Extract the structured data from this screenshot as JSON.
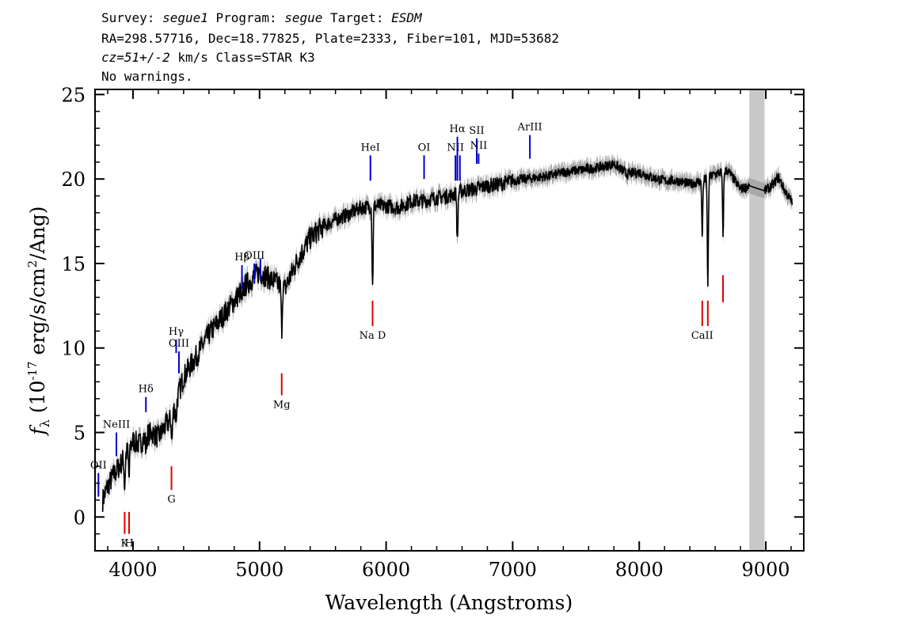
{
  "header": {
    "survey_label": "Survey:",
    "survey": "segue1",
    "program_label": "Program:",
    "program": "segue",
    "target_label": "Target:",
    "target": "ESDM",
    "line2": "RA=298.57716, Dec=18.77825, Plate=2333, Fiber=101, MJD=53682",
    "cz_label": "cz=51+/-2",
    "cz_units": "km/s Class=STAR K3",
    "warnings": "No warnings."
  },
  "chart_data": {
    "type": "line",
    "xlabel": "Wavelength (Angstroms)",
    "ylabel": "f_λ (10^-17 erg/s/cm^2/Ang)",
    "xlim": [
      3700,
      9300
    ],
    "ylim": [
      -2,
      25.3
    ],
    "xticks": [
      4000,
      5000,
      6000,
      7000,
      8000,
      9000
    ],
    "yticks": [
      0,
      5,
      10,
      15,
      20,
      25
    ],
    "grey_band": [
      8870,
      8990
    ],
    "series": [
      {
        "color": "#000000",
        "x": [
          3760,
          3800,
          3850,
          3900,
          3950,
          4000,
          4050,
          4100,
          4150,
          4200,
          4250,
          4300,
          4350,
          4400,
          4500,
          4600,
          4700,
          4800,
          4900,
          5000,
          5100,
          5200,
          5300,
          5400,
          5500,
          5600,
          5700,
          5800,
          5900,
          6000,
          6100,
          6200,
          6300,
          6400,
          6500,
          6600,
          6700,
          6800,
          6900,
          7000,
          7100,
          7200,
          7300,
          7400,
          7500,
          7600,
          7700,
          7800,
          7900,
          8000,
          8100,
          8200,
          8300,
          8400,
          8500,
          8600,
          8700,
          8800,
          8870,
          8990,
          9050,
          9100,
          9150,
          9200
        ],
        "y": [
          1.0,
          1.8,
          2.5,
          3.1,
          3.8,
          4.5,
          4.3,
          4.8,
          5.0,
          4.7,
          5.3,
          5.8,
          7.0,
          8.3,
          9.5,
          10.8,
          11.8,
          12.8,
          13.8,
          14.5,
          14.0,
          13.5,
          15.2,
          16.5,
          17.2,
          17.6,
          17.9,
          18.3,
          18.4,
          18.4,
          18.3,
          18.7,
          18.7,
          18.9,
          19.0,
          19.3,
          19.4,
          19.6,
          19.7,
          19.9,
          20.0,
          20.1,
          20.2,
          20.4,
          20.5,
          20.6,
          20.7,
          20.9,
          20.3,
          20.4,
          20.1,
          19.9,
          19.9,
          19.7,
          19.9,
          20.3,
          20.5,
          19.4,
          19.6,
          19.3,
          19.6,
          20.1,
          19.3,
          18.7
        ]
      }
    ],
    "absorption_dips": [
      {
        "x": 3934,
        "depth": 1.8
      },
      {
        "x": 3969,
        "depth": 1.8
      },
      {
        "x": 4102,
        "depth": 0.8
      },
      {
        "x": 4308,
        "depth": 1.5
      },
      {
        "x": 4340,
        "depth": 1.0
      },
      {
        "x": 4861,
        "depth": 1.0
      },
      {
        "x": 5175,
        "depth": 2.5
      },
      {
        "x": 5893,
        "depth": 4.8
      },
      {
        "x": 6563,
        "depth": 3.0
      },
      {
        "x": 8498,
        "depth": 3.2
      },
      {
        "x": 8542,
        "depth": 6.5
      },
      {
        "x": 8662,
        "depth": 3.8
      }
    ],
    "emission_line_labels": [
      {
        "label": "OII",
        "x": 3727,
        "y_top": 2.6,
        "y_bottom": 1.2
      },
      {
        "label": "NeIII",
        "x": 3869,
        "y_top": 5.0,
        "y_bottom": 3.6
      },
      {
        "label": "Hδ",
        "x": 4102,
        "y_top": 7.1,
        "y_bottom": 6.2
      },
      {
        "label": "Hγ",
        "x": 4341,
        "y_top": 10.5,
        "y_bottom": 9.7
      },
      {
        "label": "OIII",
        "x": 4363,
        "y_top": 9.8,
        "y_bottom": 8.5
      },
      {
        "label": "Hβ",
        "x": 4861,
        "y_top": 14.9,
        "y_bottom": 13.5
      },
      {
        "label": "OIII",
        "x": 4959,
        "y_top": 15.0,
        "y_bottom": 13.8
      },
      {
        "label": "",
        "x": 5007,
        "y_top": 15.3,
        "y_bottom": 14.0
      },
      {
        "label": "HeI",
        "x": 5876,
        "y_top": 21.4,
        "y_bottom": 19.9
      },
      {
        "label": "OI",
        "x": 6300,
        "y_top": 21.4,
        "y_bottom": 20.0
      },
      {
        "label": "NII",
        "x": 6548,
        "y_top": 21.4,
        "y_bottom": 19.9
      },
      {
        "label": "Hα",
        "x": 6563,
        "y_top": 22.5,
        "y_bottom": 19.9
      },
      {
        "label": "",
        "x": 6583,
        "y_top": 21.4,
        "y_bottom": 19.9
      },
      {
        "label": "SII",
        "x": 6716,
        "y_top": 22.4,
        "y_bottom": 20.9
      },
      {
        "label": "NII",
        "x": 6731,
        "y_top": 21.5,
        "y_bottom": 20.9
      },
      {
        "label": "ArIII",
        "x": 7136,
        "y_top": 22.6,
        "y_bottom": 21.2
      }
    ],
    "absorption_line_labels": [
      {
        "label": "K",
        "x": 3934,
        "y_top": 0.3,
        "y_bottom": -1.0
      },
      {
        "label": "H",
        "x": 3969,
        "y_top": 0.3,
        "y_bottom": -1.0
      },
      {
        "label": "G",
        "x": 4304,
        "y_top": 3.0,
        "y_bottom": 1.6
      },
      {
        "label": "Mg",
        "x": 5175,
        "y_top": 8.5,
        "y_bottom": 7.2
      },
      {
        "label": "Na D",
        "x": 5893,
        "y_top": 12.8,
        "y_bottom": 11.3
      },
      {
        "label": "CaII",
        "x": 8498,
        "y_top": 12.8,
        "y_bottom": 11.3
      },
      {
        "label": "",
        "x": 8542,
        "y_top": 12.8,
        "y_bottom": 11.3
      },
      {
        "label": "",
        "x": 8662,
        "y_top": 14.3,
        "y_bottom": 12.7
      }
    ],
    "colors": {
      "emission": "#0000cc",
      "absorption": "#dd0000",
      "band": "#c8c8c8",
      "error": "#a8a8a8"
    }
  }
}
